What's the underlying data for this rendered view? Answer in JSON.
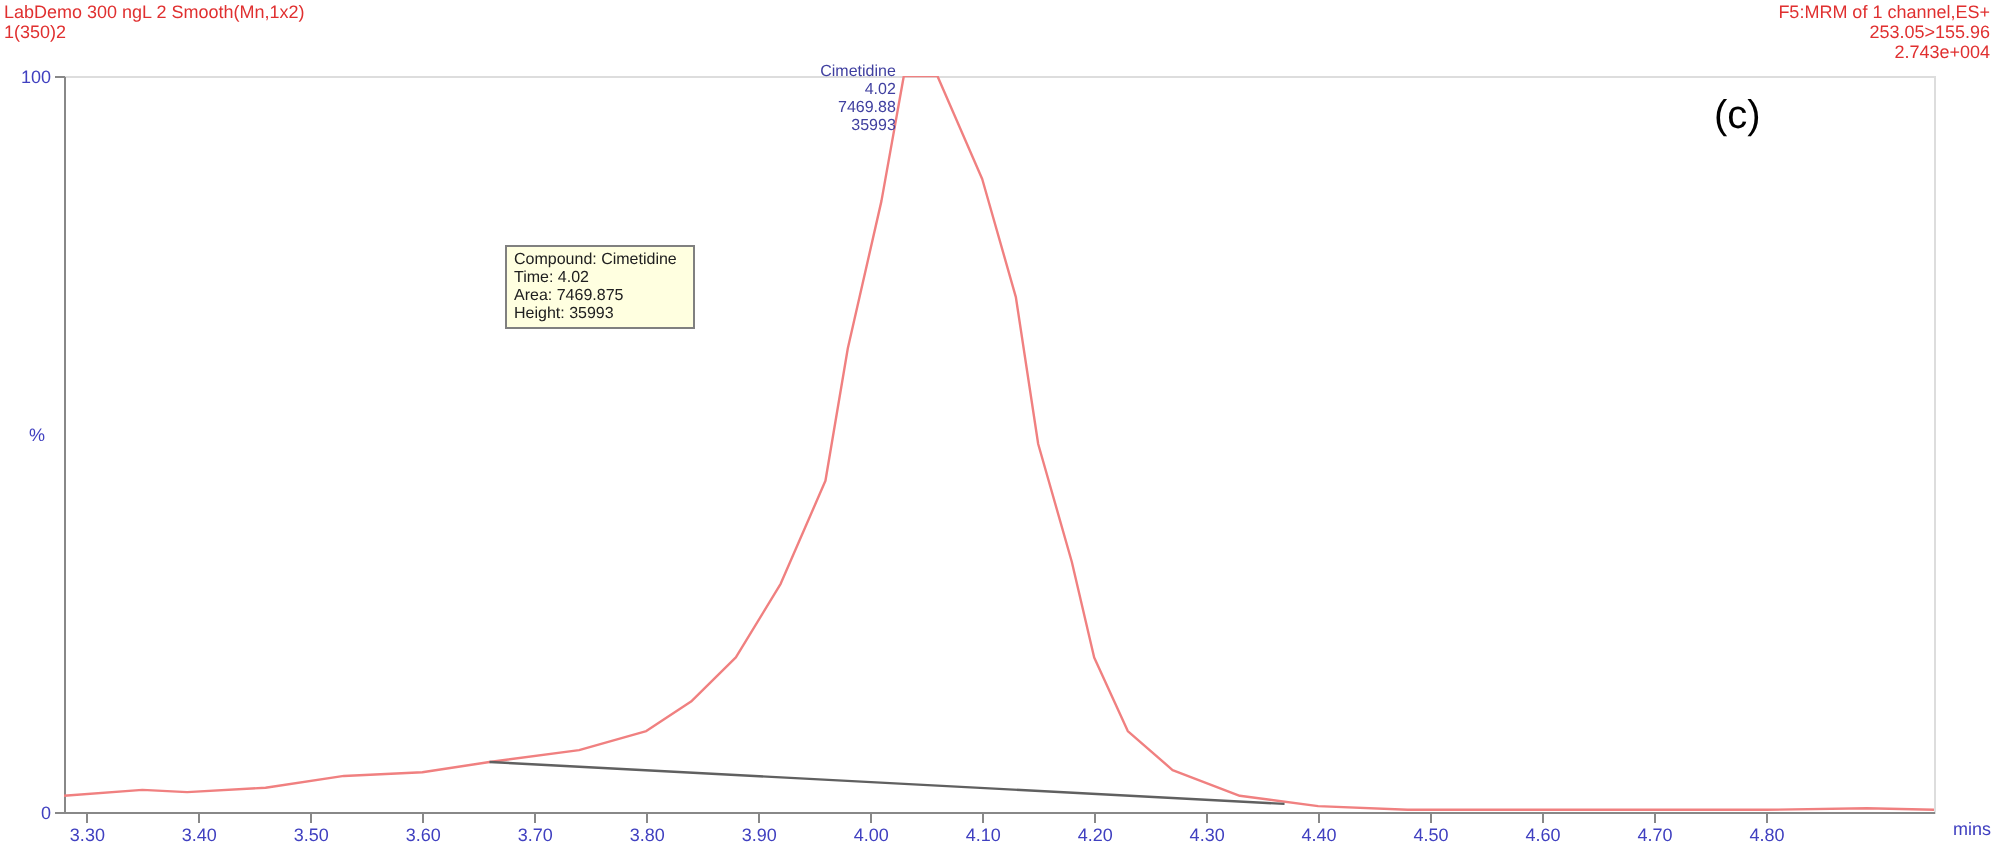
{
  "chart_data": {
    "type": "line",
    "xlabel": "mins",
    "ylabel": "%",
    "xlim": [
      3.28,
      4.95
    ],
    "ylim": [
      0,
      100
    ],
    "xticks": [
      {
        "value": 3.3,
        "label": "3.30"
      },
      {
        "value": 3.4,
        "label": "3.40"
      },
      {
        "value": 3.5,
        "label": "3.50"
      },
      {
        "value": 3.6,
        "label": "3.60"
      },
      {
        "value": 3.7,
        "label": "3.70"
      },
      {
        "value": 3.8,
        "label": "3.80"
      },
      {
        "value": 3.9,
        "label": "3.90"
      },
      {
        "value": 4.0,
        "label": "4.00"
      },
      {
        "value": 4.1,
        "label": "4.10"
      },
      {
        "value": 4.2,
        "label": "4.20"
      },
      {
        "value": 4.3,
        "label": "4.30"
      },
      {
        "value": 4.4,
        "label": "4.40"
      },
      {
        "value": 4.5,
        "label": "4.50"
      },
      {
        "value": 4.6,
        "label": "4.60"
      },
      {
        "value": 4.7,
        "label": "4.70"
      },
      {
        "value": 4.8,
        "label": "4.80"
      }
    ],
    "yticks": [
      0,
      100
    ],
    "grid": false,
    "marker": "none",
    "line_style": "solid",
    "series": [
      {
        "color": "#f08080",
        "x": [
          3.28,
          3.35,
          3.39,
          3.46,
          3.53,
          3.6,
          3.66,
          3.74,
          3.8,
          3.84,
          3.88,
          3.92,
          3.96,
          3.98,
          4.01,
          4.03,
          4.06,
          4.1,
          4.13,
          4.15,
          4.18,
          4.2,
          4.23,
          4.27,
          4.33,
          4.4,
          4.48,
          4.8,
          4.89,
          4.95
        ],
        "values": [
          2.2,
          3.0,
          2.7,
          3.3,
          4.9,
          5.4,
          6.8,
          8.4,
          11,
          15,
          21,
          31,
          45,
          63,
          83,
          100,
          100,
          86,
          70,
          50,
          34,
          21,
          11,
          5.7,
          2.2,
          0.8,
          0.3,
          0.3,
          0.5,
          0.3
        ]
      },
      {
        "color": "#606060",
        "x": [
          3.66,
          4.37
        ],
        "values": [
          6.8,
          1.1
        ]
      }
    ],
    "annotations": [
      "LabDemo 300 ngL 2  Smooth(Mn,1x2)\n1(350)2",
      "F5:MRM of 1 channel,ES+\n253.05>155.96\n2.743e+004",
      "(c)",
      "Compound: Cimetidine\nTime: 4.02\nArea: 7469.875\nHeight: 35993",
      {
        "text": "Cimetidine\n4.02\n7469.88\n35993",
        "x": 4.03,
        "y": 100
      }
    ]
  }
}
